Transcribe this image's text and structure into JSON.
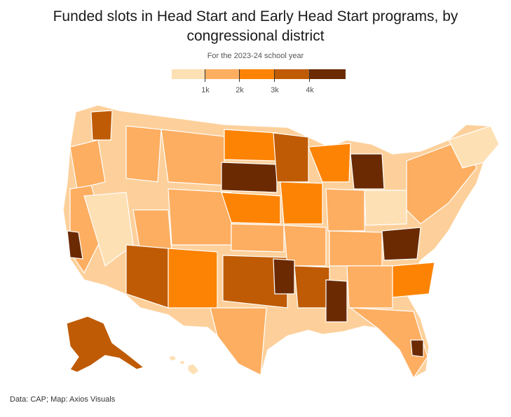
{
  "title": "Funded slots in Head Start and Early Head Start programs, by congressional district",
  "subtitle": "For the 2023-24 school year",
  "legend": {
    "bins": [
      {
        "color": "#fde0b4"
      },
      {
        "color": "#fdae61"
      },
      {
        "color": "#fd8304"
      },
      {
        "color": "#bf5b04"
      },
      {
        "color": "#6b2a02"
      }
    ],
    "tick_labels": [
      "1k",
      "2k",
      "3k",
      "4k"
    ]
  },
  "source": "Data: CAP; Map: Axios Visuals",
  "map_colors": {
    "bg_state": "#fdd09b",
    "border": "#ffffff"
  }
}
